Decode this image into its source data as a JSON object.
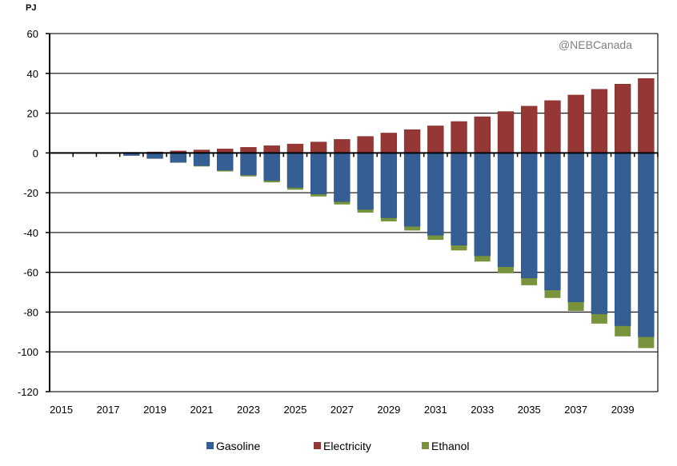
{
  "chart_data": {
    "type": "bar",
    "stacked": true,
    "ylabel": "PJ",
    "ylim": [
      -120,
      60
    ],
    "yticks": [
      -120,
      -100,
      -80,
      -60,
      -40,
      -20,
      0,
      20,
      40,
      60
    ],
    "grid": true,
    "legend": "bottom",
    "watermark": "@NEBCanada",
    "categories": [
      "2015",
      "2016",
      "2017",
      "2018",
      "2019",
      "2020",
      "2021",
      "2022",
      "2023",
      "2024",
      "2025",
      "2026",
      "2027",
      "2028",
      "2029",
      "2030",
      "2031",
      "2032",
      "2033",
      "2034",
      "2035",
      "2036",
      "2037",
      "2038",
      "2039",
      "2040"
    ],
    "xtick_labels": [
      "2015",
      "2017",
      "2019",
      "2021",
      "2023",
      "2025",
      "2027",
      "2029",
      "2031",
      "2033",
      "2035",
      "2037",
      "2039"
    ],
    "series": [
      {
        "name": "Gasoline",
        "color": "#355f94",
        "values": [
          0,
          0,
          -0.3,
          -1.3,
          -2.8,
          -4.8,
          -6.5,
          -8.8,
          -11.2,
          -14,
          -17.5,
          -20.8,
          -24.6,
          -28.5,
          -32.7,
          -37,
          -41.5,
          -46.5,
          -51.8,
          -57.3,
          -63,
          -69,
          -75,
          -81,
          -87,
          -92.5
        ]
      },
      {
        "name": "Electricity",
        "color": "#953735",
        "values": [
          0,
          0,
          0.2,
          0.3,
          0.5,
          1,
          1.5,
          2,
          2.8,
          3.6,
          4.5,
          5.5,
          6.8,
          8.3,
          10,
          11.7,
          13.6,
          15.8,
          18.2,
          20.8,
          23.5,
          26.3,
          29.1,
          32,
          34.6,
          37.4
        ]
      },
      {
        "name": "Ethanol",
        "color": "#77933c",
        "values": [
          0,
          0,
          0,
          0,
          0,
          -0.1,
          -0.3,
          -0.5,
          -0.6,
          -0.8,
          -1,
          -1.1,
          -1.3,
          -1.5,
          -1.7,
          -2,
          -2.2,
          -2.5,
          -2.8,
          -3.2,
          -3.5,
          -3.9,
          -4.4,
          -4.8,
          -5.2,
          -5.6
        ]
      }
    ]
  }
}
